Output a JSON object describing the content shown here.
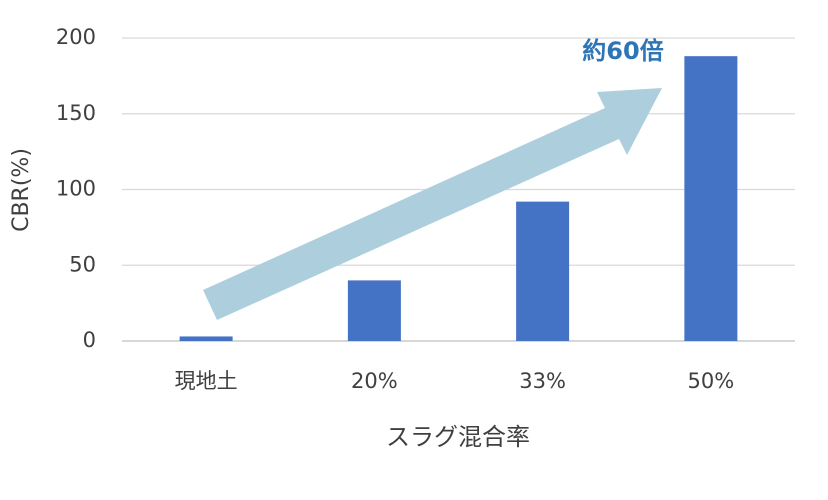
{
  "chart_data": {
    "type": "bar",
    "x_label": "スラグ混合率",
    "y_label": "CBR(%)",
    "annotation": "約60倍",
    "categories": [
      "現地土",
      "20%",
      "33%",
      "50%"
    ],
    "values": [
      3,
      40,
      92,
      188
    ],
    "color": "#4472c4",
    "ylim": [
      0,
      200
    ],
    "yticks": [
      0,
      50,
      100,
      150,
      200
    ],
    "grid": true
  }
}
